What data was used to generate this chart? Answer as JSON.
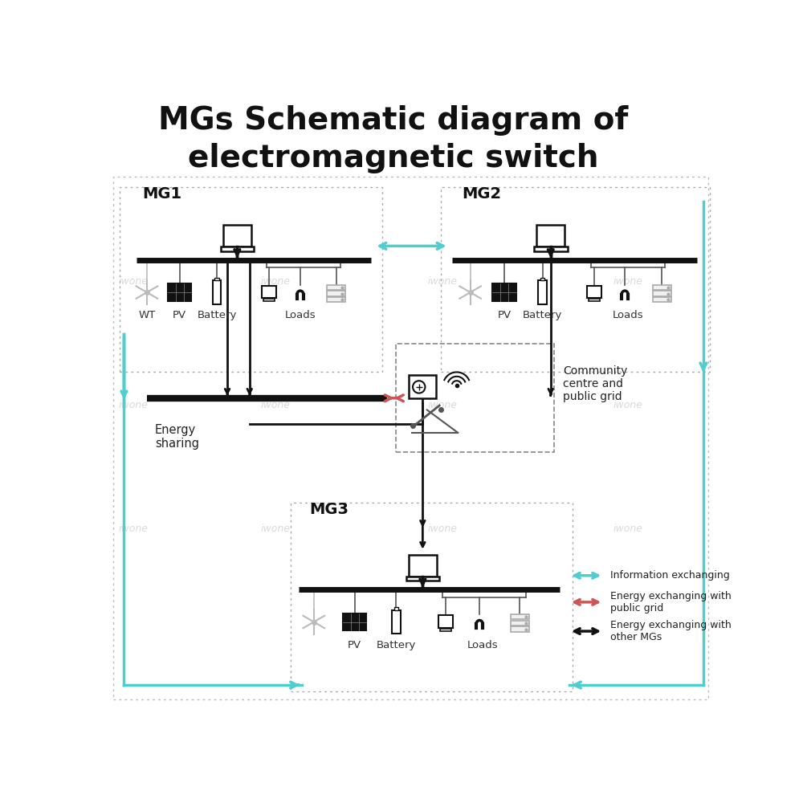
{
  "title": "MGs Schematic diagram of\nelectromagnetic switch",
  "title_fontsize": 28,
  "bg_color": "#ffffff",
  "cyan_color": "#4ecece",
  "red_color": "#cc5555",
  "black_color": "#111111",
  "gray_color": "#aaaaaa",
  "legend": {
    "cyan_label": "Information exchanging",
    "red_label": "Energy exchanging with\npublic grid",
    "black_label": "Energy exchanging with\nother MGs"
  }
}
